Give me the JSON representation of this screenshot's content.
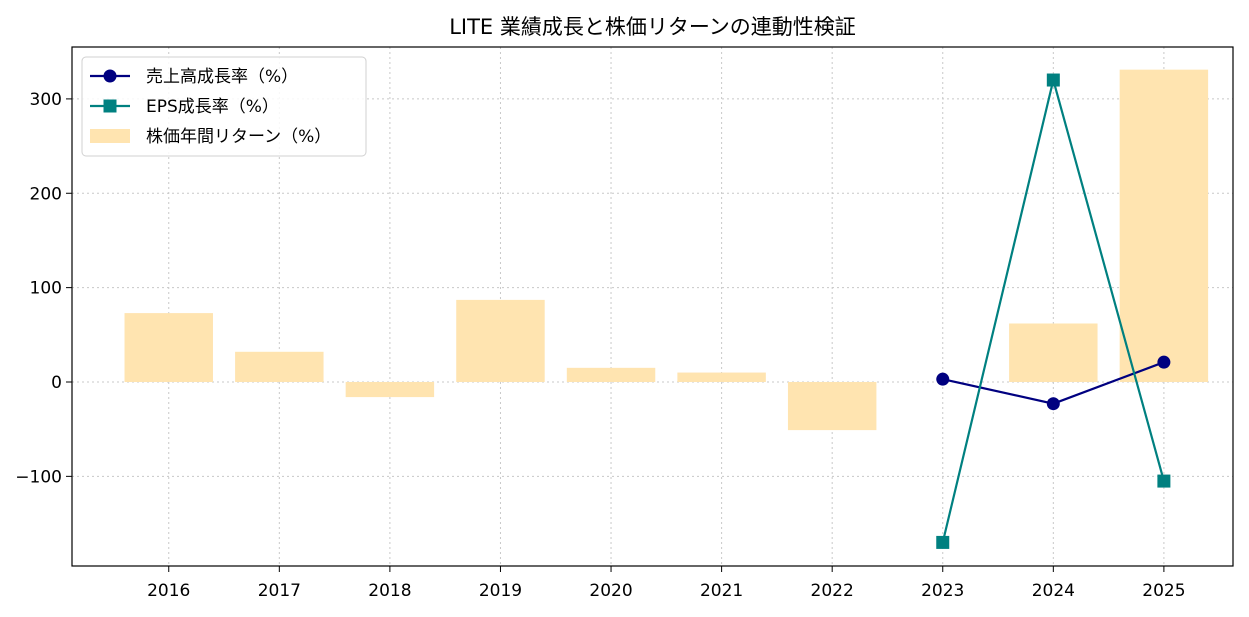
{
  "chart_data": {
    "type": "bar",
    "title": "LITE 業績成長と株価リターンの連動性検証",
    "xlabel": "",
    "ylabel": "",
    "categories": [
      "2016",
      "2017",
      "2018",
      "2019",
      "2020",
      "2021",
      "2022",
      "2023",
      "2024",
      "2025"
    ],
    "ylim": [
      -195,
      355
    ],
    "yticks": [
      -100,
      0,
      100,
      200,
      300
    ],
    "grid": true,
    "legend_position": "top-left",
    "series": [
      {
        "name": "売上高成長率（%）",
        "type": "line",
        "marker": "circle",
        "color": "#000080",
        "values": [
          null,
          null,
          null,
          null,
          null,
          null,
          null,
          3,
          -23,
          21
        ]
      },
      {
        "name": "EPS成長率（%）",
        "type": "line",
        "marker": "square",
        "color": "#008080",
        "values": [
          null,
          null,
          null,
          null,
          null,
          null,
          null,
          -170,
          320,
          -105
        ]
      },
      {
        "name": "株価年間リターン（%）",
        "type": "bar",
        "color": "#ffe4b0",
        "values": [
          73,
          32,
          -16,
          87,
          15,
          10,
          -51,
          null,
          62,
          331
        ]
      }
    ]
  }
}
